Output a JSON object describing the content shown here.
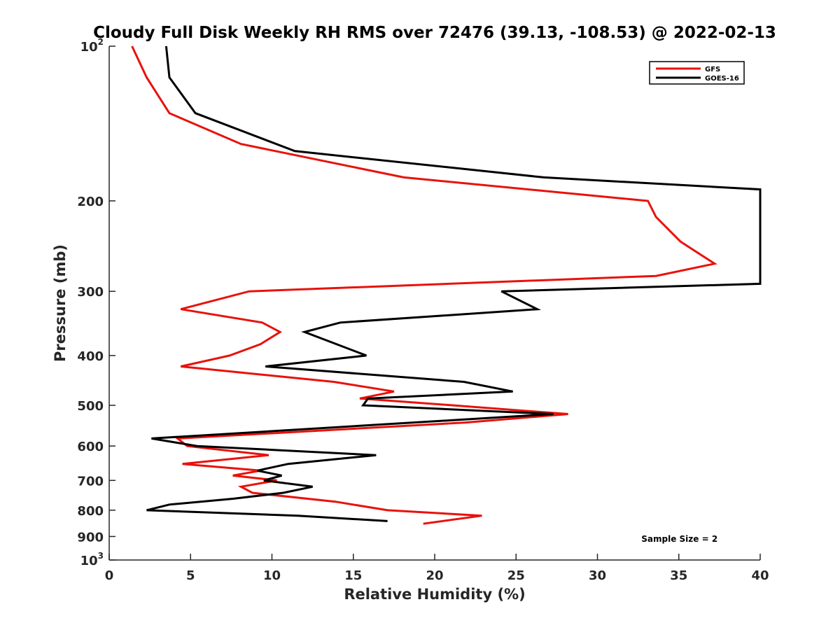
{
  "chart_data": {
    "type": "line",
    "title": "Cloudy Full Disk Weekly RH RMS over 72476 (39.13, -108.53) @ 2022-02-13",
    "xlabel": "Relative Humidity (%)",
    "ylabel": "Pressure (mb)",
    "xlim": [
      0,
      40
    ],
    "ylim": [
      100,
      1000
    ],
    "yscale": "log",
    "y_reversed": true,
    "grid": false,
    "legend_placement": "top-right",
    "x_ticks": [
      "0",
      "5",
      "10",
      "15",
      "20",
      "25",
      "30",
      "35",
      "40"
    ],
    "y_ticks": [
      {
        "value": 100,
        "label": "10",
        "sup": "2"
      },
      {
        "value": 200,
        "label": "200",
        "sup": ""
      },
      {
        "value": 300,
        "label": "300",
        "sup": ""
      },
      {
        "value": 400,
        "label": "400",
        "sup": ""
      },
      {
        "value": 500,
        "label": "500",
        "sup": ""
      },
      {
        "value": 600,
        "label": "600",
        "sup": ""
      },
      {
        "value": 700,
        "label": "700",
        "sup": ""
      },
      {
        "value": 800,
        "label": "800",
        "sup": ""
      },
      {
        "value": 900,
        "label": "900",
        "sup": ""
      },
      {
        "value": 1000,
        "label": "10",
        "sup": "3"
      }
    ],
    "series": [
      {
        "name": "GFS",
        "color": "#e8120c",
        "points": [
          [
            1.4,
            100
          ],
          [
            2.3,
            115
          ],
          [
            3.7,
            135
          ],
          [
            8.1,
            155
          ],
          [
            18.1,
            180
          ],
          [
            33.1,
            200
          ],
          [
            33.6,
            215
          ],
          [
            35.1,
            240
          ],
          [
            37.2,
            265
          ],
          [
            33.6,
            280
          ],
          [
            8.6,
            300
          ],
          [
            4.4,
            325
          ],
          [
            9.4,
            345
          ],
          [
            10.5,
            360
          ],
          [
            9.3,
            380
          ],
          [
            7.4,
            400
          ],
          [
            4.4,
            420
          ],
          [
            13.8,
            450
          ],
          [
            17.5,
            470
          ],
          [
            15.4,
            485
          ],
          [
            21.1,
            500
          ],
          [
            28.2,
            520
          ],
          [
            21.9,
            540
          ],
          [
            4.2,
            580
          ],
          [
            4.8,
            600
          ],
          [
            9.8,
            625
          ],
          [
            4.5,
            650
          ],
          [
            9.3,
            670
          ],
          [
            7.6,
            685
          ],
          [
            10.3,
            700
          ],
          [
            8.1,
            720
          ],
          [
            8.8,
            740
          ],
          [
            13.9,
            770
          ],
          [
            17.1,
            800
          ],
          [
            22.9,
            820
          ],
          [
            19.3,
            850
          ]
        ]
      },
      {
        "name": "GOES-16",
        "color": "#000000",
        "points": [
          [
            3.5,
            100
          ],
          [
            3.7,
            115
          ],
          [
            5.3,
            135
          ],
          [
            11.4,
            160
          ],
          [
            26.7,
            180
          ],
          [
            40,
            190
          ],
          [
            40,
            290
          ],
          [
            24.1,
            300
          ],
          [
            26.3,
            325
          ],
          [
            14.2,
            345
          ],
          [
            12.0,
            360
          ],
          [
            15.8,
            400
          ],
          [
            9.6,
            420
          ],
          [
            21.8,
            450
          ],
          [
            24.8,
            470
          ],
          [
            15.9,
            485
          ],
          [
            15.6,
            500
          ],
          [
            27.3,
            520
          ],
          [
            2.6,
            580
          ],
          [
            5.4,
            600
          ],
          [
            16.4,
            625
          ],
          [
            11.0,
            650
          ],
          [
            9.1,
            670
          ],
          [
            10.6,
            685
          ],
          [
            9.5,
            700
          ],
          [
            12.5,
            720
          ],
          [
            10.7,
            740
          ],
          [
            7.6,
            760
          ],
          [
            3.7,
            780
          ],
          [
            2.3,
            800
          ],
          [
            11.6,
            820
          ],
          [
            17.1,
            840
          ]
        ]
      }
    ],
    "annotations": [
      {
        "text": "Sample Size = 2",
        "x": 32.7,
        "y": 910
      }
    ]
  },
  "colors": {
    "axis": "#262626",
    "background": "#ffffff"
  }
}
